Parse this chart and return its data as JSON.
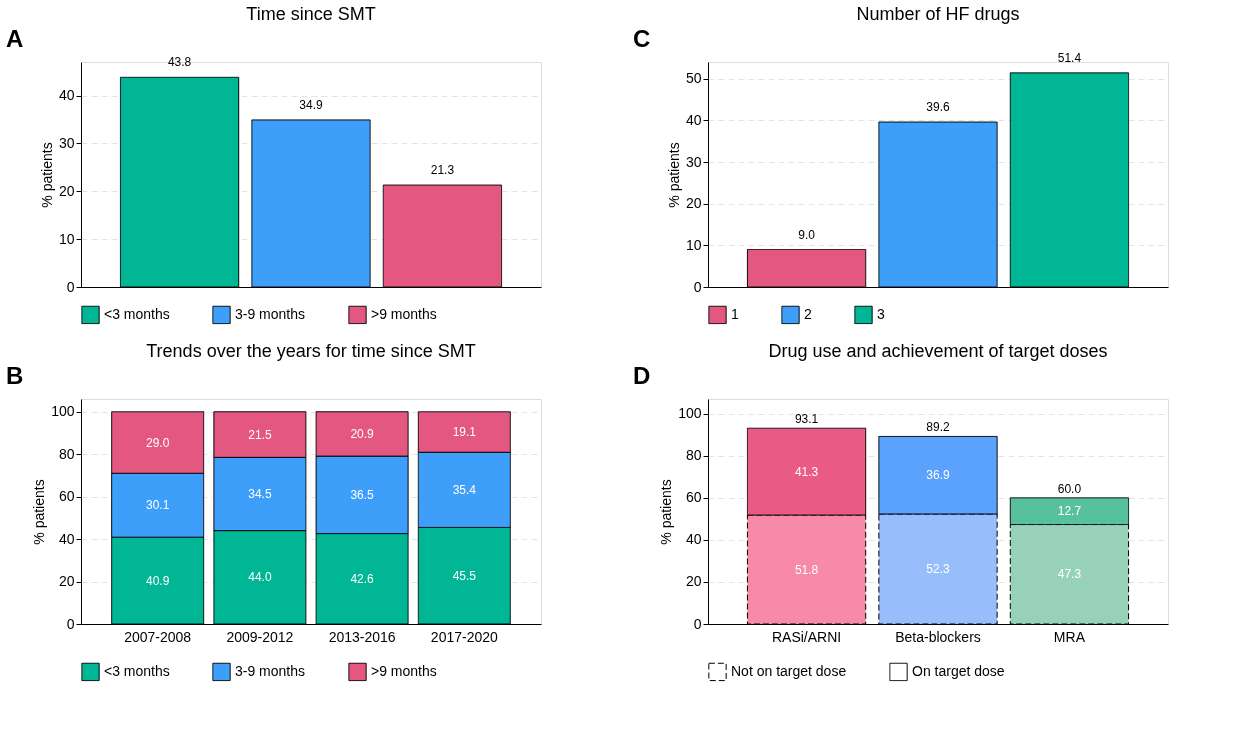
{
  "chart_data": [
    {
      "type": "bar",
      "title": "Time since SMT",
      "ylabel": "% patients",
      "annotations": [
        "A"
      ],
      "categories": [
        null,
        null,
        null
      ],
      "series": [
        {
          "name": "<3 months",
          "color": "#00b695",
          "values": [
            43.8,
            null,
            null
          ],
          "value_labels": [
            "43.8",
            null,
            null
          ]
        },
        {
          "name": "3-9 months",
          "color": "#3d9ff9",
          "values": [
            null,
            34.9,
            null
          ],
          "value_labels": [
            null,
            "34.9",
            null
          ]
        },
        {
          "name": ">9 months",
          "color": "#e45780",
          "values": [
            null,
            null,
            21.3
          ],
          "value_labels": [
            null,
            null,
            "21.3"
          ]
        }
      ],
      "ylim": [
        0,
        47
      ],
      "yticks": [
        0,
        10,
        20,
        30,
        40
      ],
      "grid": "y",
      "legend": "bottom",
      "tick_labels": "y",
      "data_labels": true
    },
    {
      "type": "bar",
      "title": "Number of HF drugs",
      "ylabel": "% patients",
      "annotations": [
        "C"
      ],
      "categories": [
        null,
        null,
        null
      ],
      "series": [
        {
          "name": "1",
          "color": "#e45780",
          "values": [
            9.0,
            null,
            null
          ],
          "value_labels": [
            "9.0",
            null,
            null
          ]
        },
        {
          "name": "2",
          "color": "#3d9ff9",
          "values": [
            null,
            39.6,
            null
          ],
          "value_labels": [
            null,
            "39.6",
            null
          ]
        },
        {
          "name": "3",
          "color": "#00b695",
          "values": [
            null,
            null,
            51.4
          ],
          "value_labels": [
            null,
            null,
            "51.4"
          ]
        }
      ],
      "ylim": [
        0,
        54
      ],
      "yticks": [
        0,
        10,
        20,
        30,
        40,
        50
      ],
      "grid": "y",
      "legend": "bottom",
      "tick_labels": "y",
      "data_labels": true
    },
    {
      "type": "bar",
      "title": "Trends over the years for time since SMT",
      "ylabel": "% patients",
      "annotations": [
        "B"
      ],
      "categories": [
        "2007-2008",
        "2009-2012",
        "2013-2016",
        "2017-2020"
      ],
      "stacked": true,
      "series": [
        {
          "name": "<3 months",
          "color": "#00b695",
          "values": [
            40.9,
            44.0,
            42.6,
            45.5
          ],
          "value_labels": [
            "40.9",
            "44.0",
            "42.6",
            "45.5"
          ]
        },
        {
          "name": "3-9 months",
          "color": "#3d9ff9",
          "values": [
            30.1,
            34.5,
            36.5,
            35.4
          ],
          "value_labels": [
            "30.1",
            "34.5",
            "36.5",
            "35.4"
          ]
        },
        {
          "name": ">9 months",
          "color": "#e45780",
          "values": [
            29.0,
            21.5,
            20.9,
            19.1
          ],
          "value_labels": [
            "29.0",
            "21.5",
            "20.9",
            "19.1"
          ]
        }
      ],
      "ylim": [
        0,
        106
      ],
      "yticks": [
        0,
        20,
        40,
        60,
        80,
        100
      ],
      "grid": "y",
      "legend": "bottom",
      "data_labels": true
    },
    {
      "type": "bar",
      "title": "Drug use and achievement of target doses",
      "ylabel": "% patients",
      "annotations": [
        "D"
      ],
      "categories": [
        "RASi/ARNI",
        "Beta-blockers",
        "MRA"
      ],
      "stacked": true,
      "series": [
        {
          "name": "Not on target dose",
          "line_style": "dashed",
          "colors": [
            "#f78aa7",
            "#98bdfb",
            "#98d1b9"
          ],
          "values": [
            51.8,
            52.3,
            47.3
          ],
          "value_labels": [
            "51.8",
            "52.3",
            "47.3"
          ]
        },
        {
          "name": "On target dose",
          "line_style": "solid",
          "colors": [
            "#e95b85",
            "#5aa2fb",
            "#57c19e"
          ],
          "values": [
            41.3,
            36.9,
            12.7
          ],
          "value_labels": [
            "41.3",
            "36.9",
            "12.7"
          ]
        }
      ],
      "totals": [
        "93.1",
        "89.2",
        "60.0"
      ],
      "ylim": [
        0,
        107
      ],
      "yticks": [
        0,
        20,
        40,
        60,
        80,
        100
      ],
      "grid": "y",
      "legend": "bottom",
      "data_labels": true
    }
  ]
}
